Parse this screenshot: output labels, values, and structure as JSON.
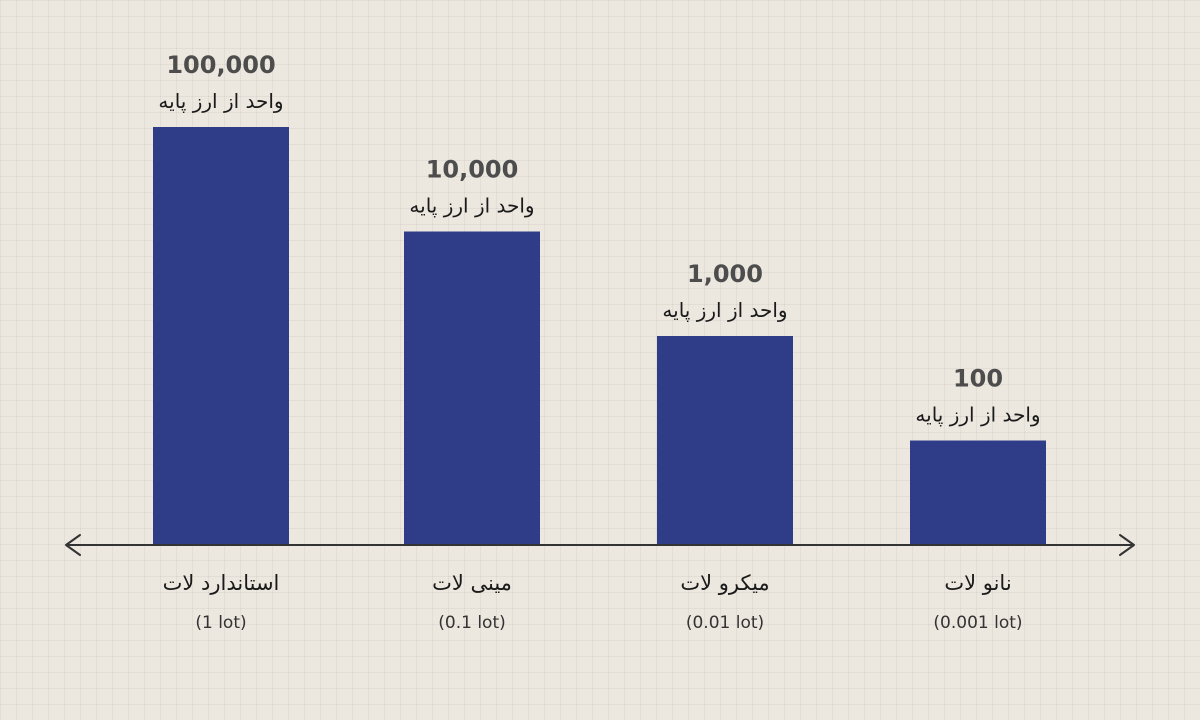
{
  "chart_data": {
    "type": "bar",
    "categories": [
      "استاندارد لات",
      "مینی لات",
      "میکرو لات",
      "نانو لات"
    ],
    "sublabels": [
      "(1 lot)",
      "(0.1 lot)",
      "(0.01 lot)",
      "(0.001 lot)"
    ],
    "values": [
      100000,
      10000,
      1000,
      100
    ],
    "value_labels": [
      "100,000",
      "10,000",
      "1,000",
      "100"
    ],
    "unit_label": "واحد از ارز پایه",
    "scale": "log",
    "ylim": [
      10,
      100000
    ],
    "grid": false,
    "legend": "none",
    "colors": {
      "bar": "#2f3c88",
      "value_text": "#4d4d4d",
      "label_text": "#1a1a1a",
      "sublabel_text": "#333333",
      "axis": "#333333",
      "background": "#ece7df"
    }
  }
}
